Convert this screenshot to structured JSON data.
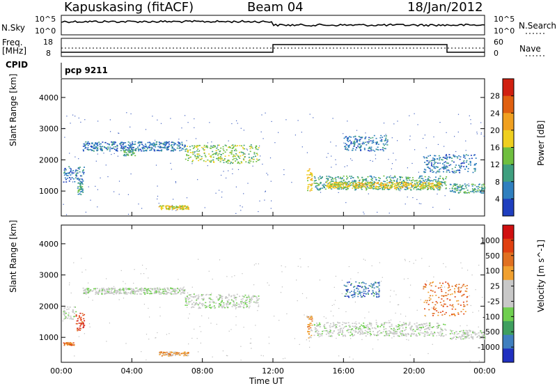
{
  "header": {
    "station": "Kapuskasing (fitACF)",
    "beam": "Beam 04",
    "date": "18/Jan/2012"
  },
  "top_panels": {
    "nsky_label": "N.Sky",
    "nsky_ticks": [
      "10^5",
      "10^0"
    ],
    "nsearch_label": "N.Search",
    "nsearch_ticks": [
      "10^5",
      "10^0"
    ],
    "freq_label_1": "Freq.",
    "freq_label_2": "[MHz]",
    "freq_ticks": [
      "18",
      "8"
    ],
    "nave_label": "Nave",
    "nave_ticks": [
      "60",
      "0"
    ],
    "cpid_label": "CPID",
    "cpid_value": "pcp 9211"
  },
  "colors": {
    "power": [
      "#1f3fbf",
      "#2f7fbf",
      "#3f9f7f",
      "#6fbf3f",
      "#efcf1f",
      "#f0a020",
      "#e06010",
      "#d02010"
    ],
    "velocity": [
      "#2030c0",
      "#3f7fbf",
      "#3f9f5f",
      "#6fcf4f",
      "#c8c8c8",
      "#c8c8c8",
      "#f0a030",
      "#e07020",
      "#e04010",
      "#d01010"
    ]
  },
  "chart_data": [
    {
      "type": "heatmap",
      "title": "",
      "xlabel": "Time UT",
      "ylabel": "Slant Range [km]",
      "x_ticks": [
        "00:00",
        "04:00",
        "08:00",
        "12:00",
        "16:00",
        "20:00",
        "00:00"
      ],
      "y_ticks": [
        "1000",
        "2000",
        "3000",
        "4000"
      ],
      "xlim": [
        0,
        24
      ],
      "ylim": [
        200,
        4600
      ],
      "colorbar_label": "Power [dB]",
      "colorbar_ticks": [
        "4",
        "8",
        "12",
        "16",
        "20",
        "24",
        "28"
      ],
      "regions": [
        {
          "t0": 0.1,
          "t1": 1.3,
          "r0": 1300,
          "r1": 1800,
          "level": 1
        },
        {
          "t0": 0.9,
          "t1": 1.2,
          "r0": 900,
          "r1": 1300,
          "level": 2
        },
        {
          "t0": 1.2,
          "t1": 7.0,
          "r0": 2300,
          "r1": 2600,
          "level": 1
        },
        {
          "t0": 3.5,
          "t1": 4.2,
          "r0": 2150,
          "r1": 2350,
          "level": 2
        },
        {
          "t0": 5.5,
          "t1": 7.2,
          "r0": 420,
          "r1": 550,
          "level": 4
        },
        {
          "t0": 7.0,
          "t1": 11.2,
          "r0": 1900,
          "r1": 2500,
          "level": 3
        },
        {
          "t0": 13.9,
          "t1": 14.2,
          "r0": 1000,
          "r1": 1800,
          "level": 4
        },
        {
          "t0": 14.3,
          "t1": 21.8,
          "r0": 1050,
          "r1": 1500,
          "level": 2
        },
        {
          "t0": 15.0,
          "t1": 21.5,
          "r0": 1100,
          "r1": 1300,
          "level": 4
        },
        {
          "t0": 22.0,
          "t1": 24.0,
          "r0": 950,
          "r1": 1250,
          "level": 2
        },
        {
          "t0": 16.0,
          "t1": 18.5,
          "r0": 2300,
          "r1": 2800,
          "level": 1
        },
        {
          "t0": 20.5,
          "t1": 23.5,
          "r0": 1600,
          "r1": 2200,
          "level": 1
        }
      ]
    },
    {
      "type": "heatmap",
      "title": "",
      "xlabel": "Time UT",
      "ylabel": "Slant Range [km]",
      "x_ticks": [
        "00:00",
        "04:00",
        "08:00",
        "12:00",
        "16:00",
        "20:00",
        "00:00"
      ],
      "y_ticks": [
        "1000",
        "2000",
        "3000",
        "4000"
      ],
      "xlim": [
        0,
        24
      ],
      "ylim": [
        200,
        4600
      ],
      "colorbar_label": "Velocity [m s^-1]",
      "colorbar_ticks": [
        "1000",
        "500",
        "100",
        "25",
        "-25",
        "-100",
        "-500",
        "-1000"
      ],
      "regions": [
        {
          "t0": 0.1,
          "t1": 0.8,
          "r0": 1600,
          "r1": 2000,
          "level": 4
        },
        {
          "t0": 0.8,
          "t1": 1.3,
          "r0": 1200,
          "r1": 1800,
          "level": 8
        },
        {
          "t0": 0.1,
          "t1": 0.7,
          "r0": 750,
          "r1": 850,
          "level": 7
        },
        {
          "t0": 1.2,
          "t1": 7.0,
          "r0": 2400,
          "r1": 2600,
          "level": 4
        },
        {
          "t0": 5.5,
          "t1": 7.2,
          "r0": 420,
          "r1": 550,
          "level": 6
        },
        {
          "t0": 7.0,
          "t1": 11.2,
          "r0": 1950,
          "r1": 2400,
          "level": 4
        },
        {
          "t0": 13.9,
          "t1": 14.2,
          "r0": 1000,
          "r1": 1700,
          "level": 6
        },
        {
          "t0": 14.3,
          "t1": 21.8,
          "r0": 1050,
          "r1": 1500,
          "level": 4
        },
        {
          "t0": 22.0,
          "t1": 24.0,
          "r0": 950,
          "r1": 1250,
          "level": 4
        },
        {
          "t0": 16.0,
          "t1": 18.0,
          "r0": 2300,
          "r1": 2800,
          "level": 1
        },
        {
          "t0": 20.5,
          "t1": 23.0,
          "r0": 1700,
          "r1": 2800,
          "level": 7
        }
      ]
    }
  ]
}
